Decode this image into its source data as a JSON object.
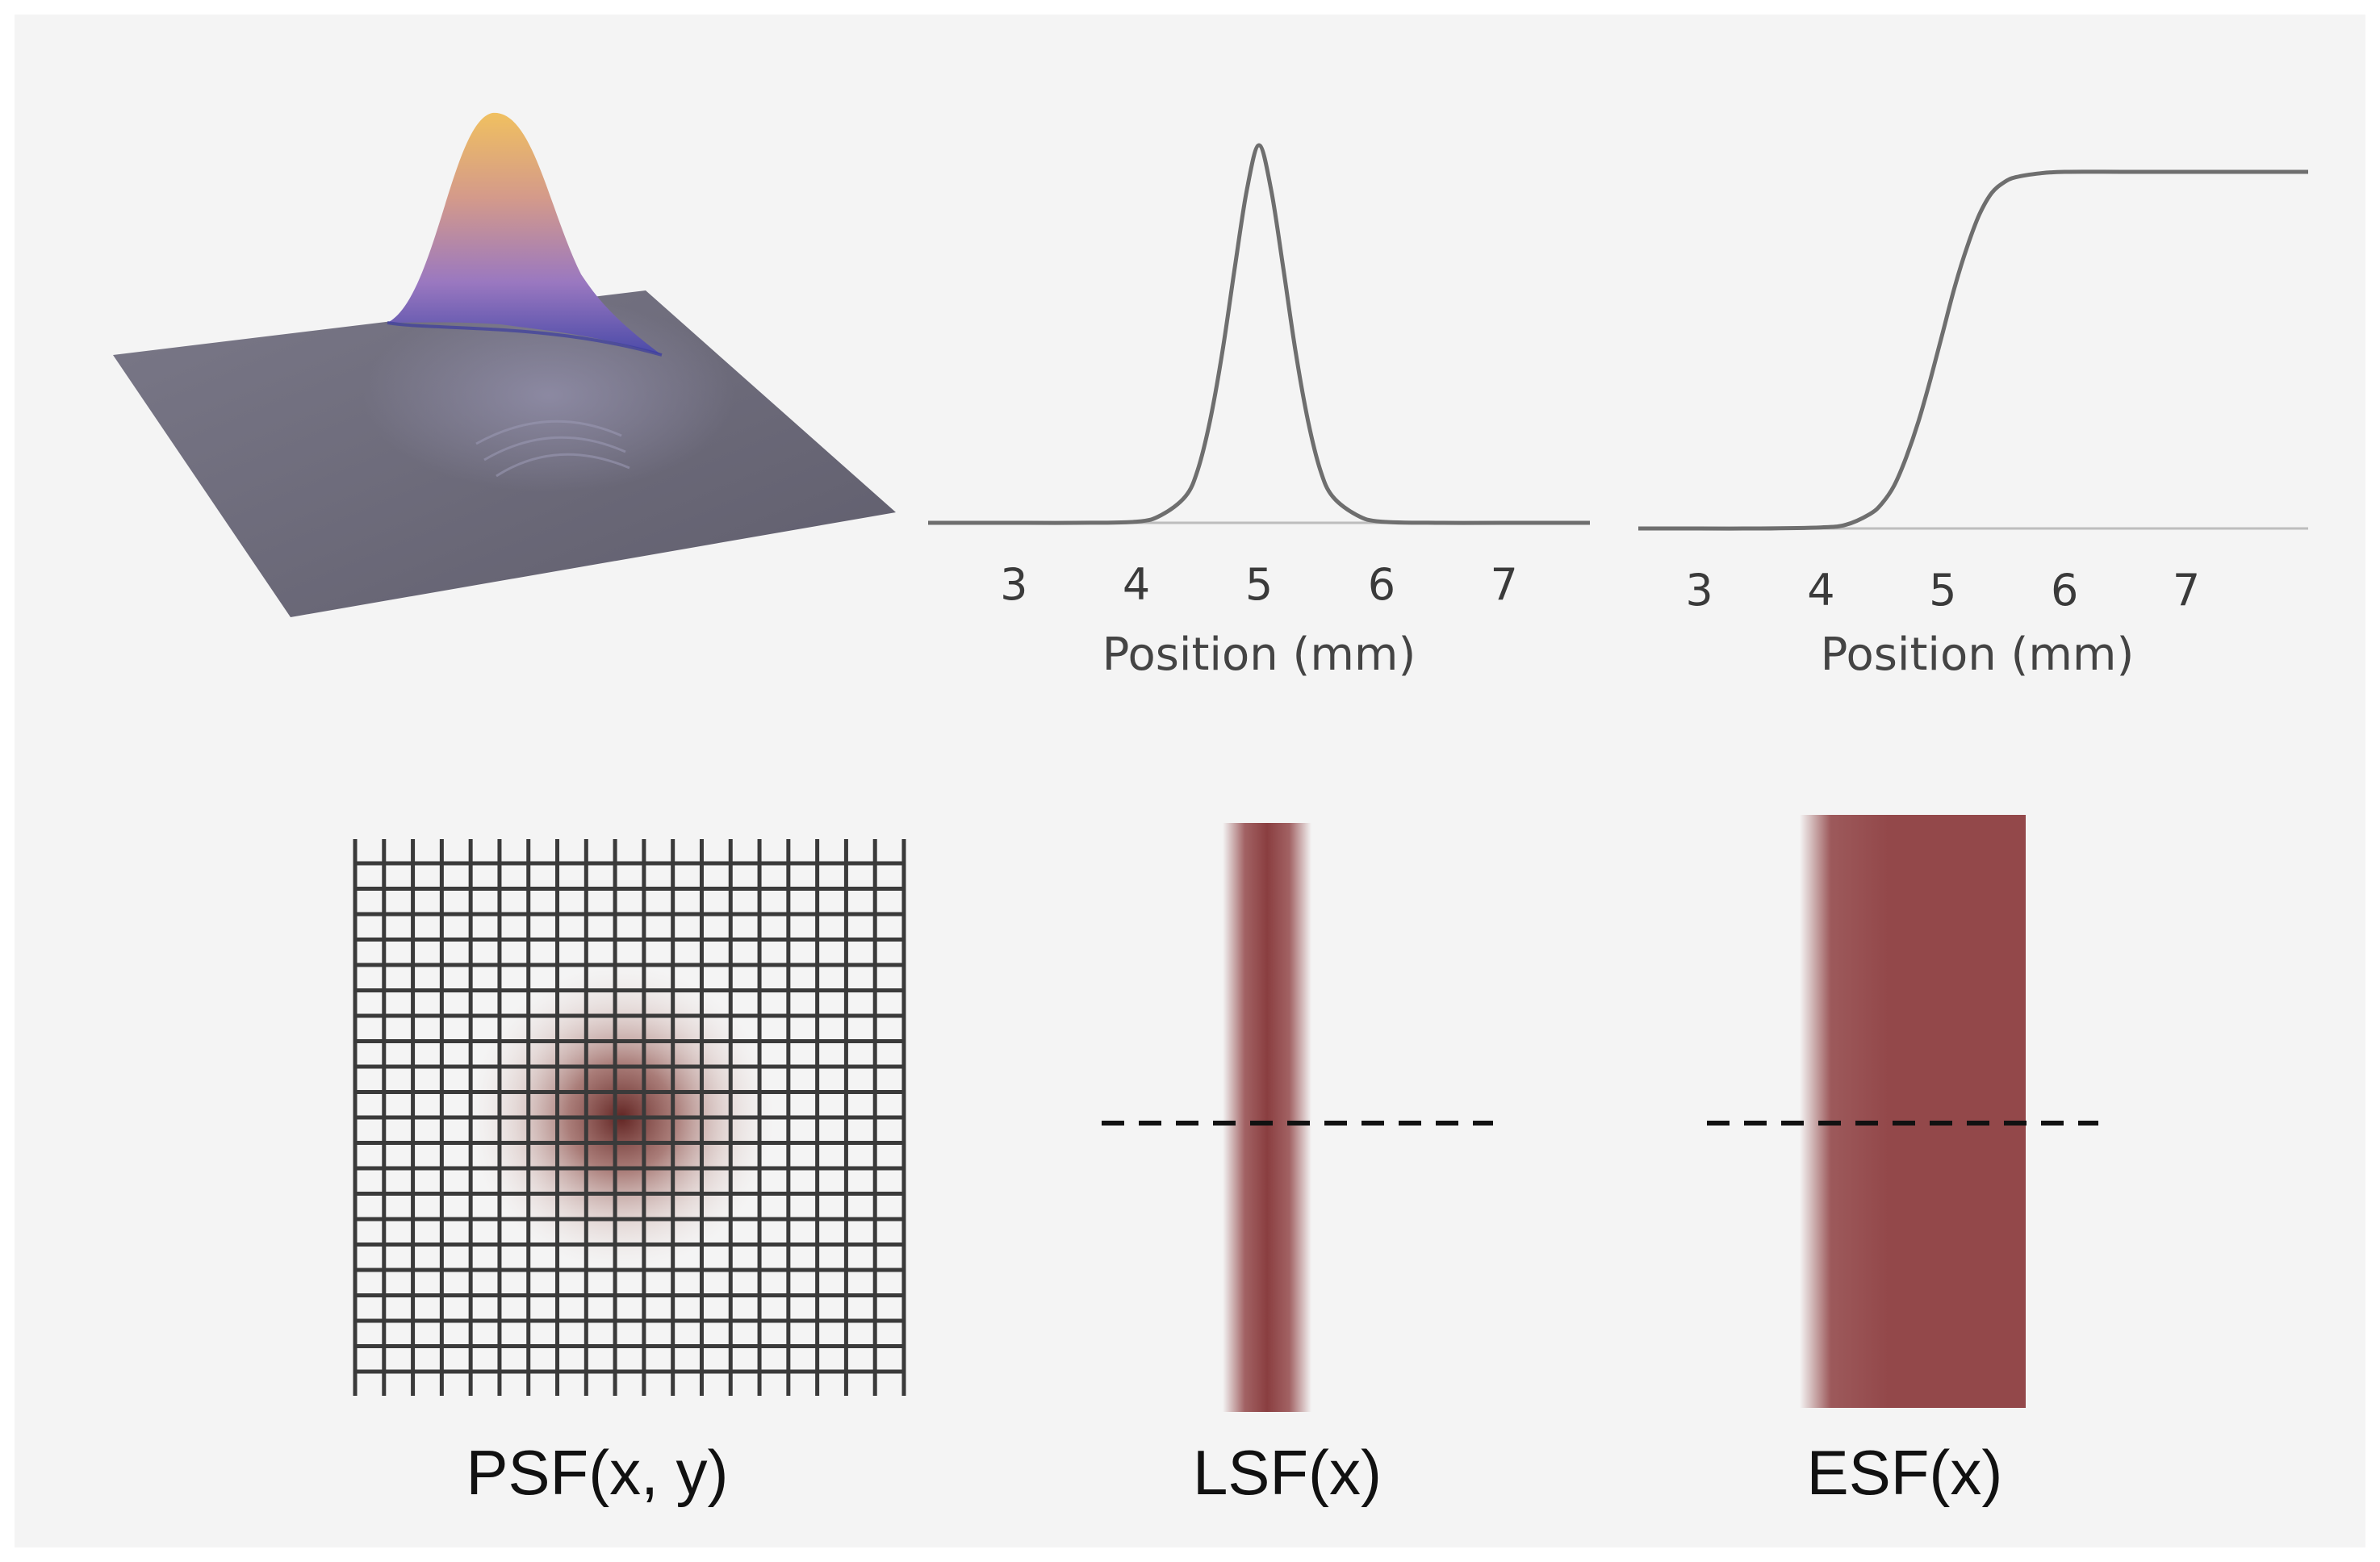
{
  "colors": {
    "background": "#f4f4f4",
    "curve": "#6e6e6e",
    "stripe": "#93484a",
    "grid": "#3a3a3a",
    "surface_plane": "#6c6a7a",
    "surface_peak": "#e8b252"
  },
  "surface_plot": {
    "name": "3d-psf-surface"
  },
  "chart_data": [
    {
      "type": "line",
      "name": "lsf-profile",
      "xlabel": "Position (mm)",
      "x_ticks": [
        "3",
        "4",
        "5",
        "6",
        "7"
      ],
      "xlim": [
        2.3,
        7.7
      ],
      "ylim": [
        0,
        1
      ],
      "grid": false,
      "series": [
        {
          "x": [
            2.3,
            3.0,
            3.5,
            4.0,
            4.2,
            4.4,
            4.5,
            4.6,
            4.7,
            4.8,
            4.9,
            5.0,
            5.1,
            5.2,
            5.3,
            5.4,
            5.5,
            5.6,
            5.8,
            6.0,
            6.5,
            7.0,
            7.7
          ],
          "y": [
            0,
            0,
            0,
            0.003,
            0.02,
            0.07,
            0.14,
            0.27,
            0.45,
            0.67,
            0.88,
            1.0,
            0.88,
            0.67,
            0.45,
            0.27,
            0.14,
            0.07,
            0.02,
            0.003,
            0,
            0,
            0
          ]
        }
      ]
    },
    {
      "type": "line",
      "name": "esf-profile",
      "xlabel": "Position (mm)",
      "x_ticks": [
        "3",
        "4",
        "5",
        "6",
        "7"
      ],
      "xlim": [
        2.5,
        8.0
      ],
      "ylim": [
        0,
        1
      ],
      "grid": false,
      "series": [
        {
          "x": [
            2.5,
            3.0,
            3.5,
            4.0,
            4.2,
            4.4,
            4.5,
            4.6,
            4.7,
            4.8,
            4.9,
            5.0,
            5.1,
            5.2,
            5.3,
            5.4,
            5.5,
            5.6,
            5.8,
            6.0,
            6.5,
            7.0,
            8.0
          ],
          "y": [
            0,
            0,
            0,
            0.003,
            0.01,
            0.04,
            0.07,
            0.12,
            0.2,
            0.3,
            0.42,
            0.55,
            0.68,
            0.79,
            0.88,
            0.94,
            0.97,
            0.985,
            0.996,
            1.0,
            1.0,
            1.0,
            1.0
          ]
        }
      ]
    }
  ],
  "captions": {
    "psf": "PSF(x, y)",
    "lsf": "LSF(x)",
    "esf": "ESF(x)"
  }
}
